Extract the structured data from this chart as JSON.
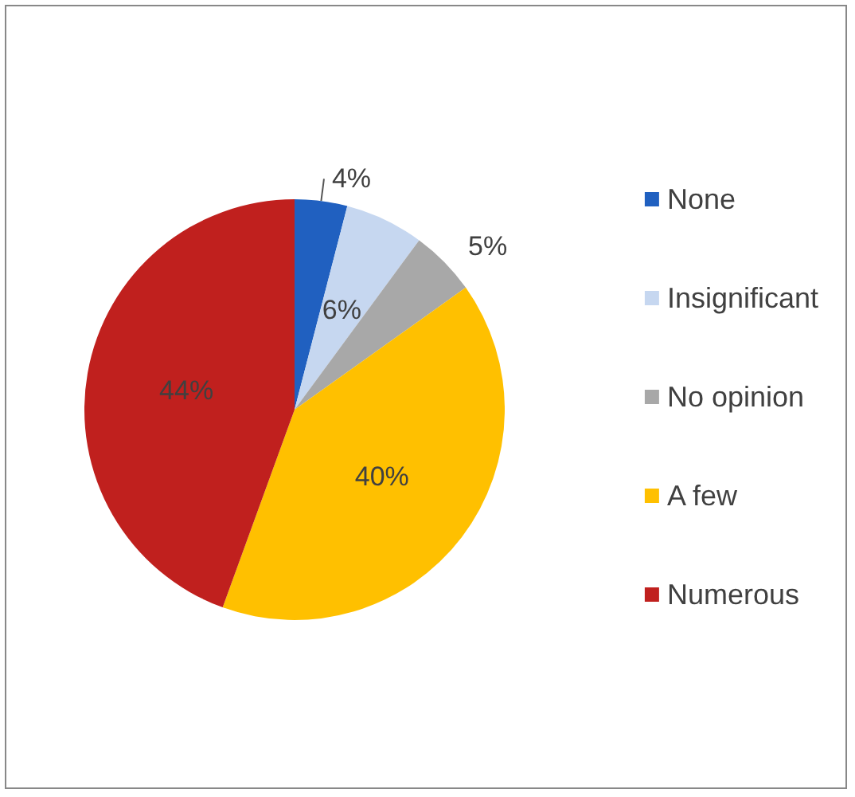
{
  "chart_data": {
    "type": "pie",
    "categories": [
      "None",
      "Insignificant",
      "No opinion",
      "A few",
      "Numerous"
    ],
    "values": [
      4,
      6,
      5,
      40,
      44
    ],
    "colors": [
      "#2060c0",
      "#c6d7f0",
      "#a8a8a8",
      "#ffc000",
      "#c0201e"
    ],
    "value_labels": [
      "4%",
      "6%",
      "5%",
      "40%",
      "44%"
    ],
    "legend": "right"
  }
}
